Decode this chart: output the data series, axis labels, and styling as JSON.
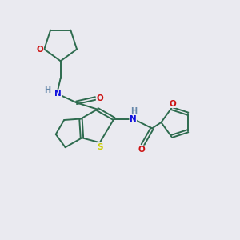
{
  "bg_color": "#eaeaf0",
  "bond_color": "#2d6b4e",
  "atom_colors": {
    "N": "#1010dd",
    "O": "#cc1111",
    "S": "#cccc00",
    "H": "#6688aa"
  },
  "font_size": 7.5,
  "figsize": [
    3.0,
    3.0
  ],
  "dpi": 100,
  "lw": 1.4,
  "xlim": [
    0,
    10
  ],
  "ylim": [
    0,
    10
  ]
}
